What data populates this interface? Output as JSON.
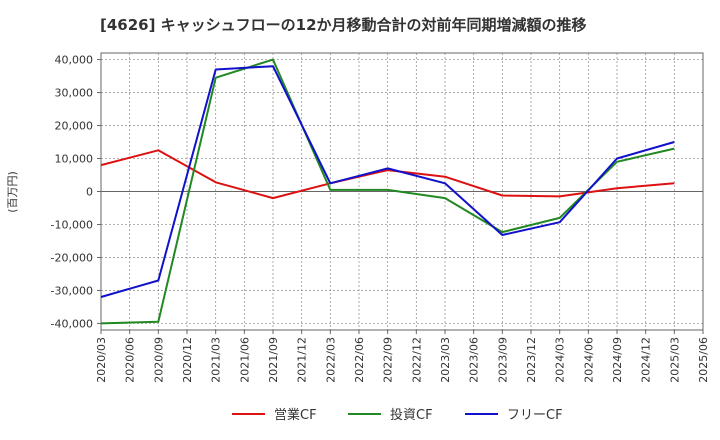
{
  "chart_data": {
    "type": "line",
    "title": "[4626]  キャッシュフローの12か月移動合計の対前年同期増減額の推移",
    "ylabel": "(百万円)",
    "xlabel": "",
    "ylim": [
      -42000,
      42000
    ],
    "grid": true,
    "legend_position": "bottom",
    "x_ticks": [
      "2020/03",
      "2020/06",
      "2020/09",
      "2020/12",
      "2021/03",
      "2021/06",
      "2021/09",
      "2021/12",
      "2022/03",
      "2022/06",
      "2022/09",
      "2022/12",
      "2023/03",
      "2023/06",
      "2023/09",
      "2023/12",
      "2024/03",
      "2024/06",
      "2024/09",
      "2024/12",
      "2025/03",
      "2025/06"
    ],
    "y_ticks": [
      40000,
      30000,
      20000,
      10000,
      0,
      -10000,
      -20000,
      -30000,
      -40000
    ],
    "y_tick_labels": [
      "40,000",
      "30,000",
      "20,000",
      "10,000",
      "0",
      "-10,000",
      "-20,000",
      "-30,000",
      "-40,000"
    ],
    "series": [
      {
        "name": "営業CF",
        "color": "#dd1111",
        "x": [
          "2020/03",
          "2020/09",
          "2021/03",
          "2021/09",
          "2022/03",
          "2022/09",
          "2023/03",
          "2023/09",
          "2024/03",
          "2024/09",
          "2025/03"
        ],
        "values": [
          8000,
          12500,
          2800,
          -2000,
          2500,
          6500,
          4500,
          -1200,
          -1500,
          1000,
          2500
        ]
      },
      {
        "name": "投資CF",
        "color": "#228822",
        "x": [
          "2020/03",
          "2020/09",
          "2021/03",
          "2021/09",
          "2022/03",
          "2022/09",
          "2023/03",
          "2023/09",
          "2024/03",
          "2024/09",
          "2025/03"
        ],
        "values": [
          -40000,
          -39500,
          34500,
          40000,
          500,
          500,
          -2000,
          -12300,
          -8000,
          9000,
          13000
        ]
      },
      {
        "name": "フリーCF",
        "color": "#1111cc",
        "x": [
          "2020/03",
          "2020/09",
          "2021/03",
          "2021/09",
          "2022/03",
          "2022/09",
          "2023/03",
          "2023/09",
          "2024/03",
          "2024/09",
          "2025/03"
        ],
        "values": [
          -32000,
          -27000,
          37000,
          38000,
          2500,
          7000,
          2500,
          -13200,
          -9300,
          10000,
          15000
        ]
      }
    ]
  }
}
